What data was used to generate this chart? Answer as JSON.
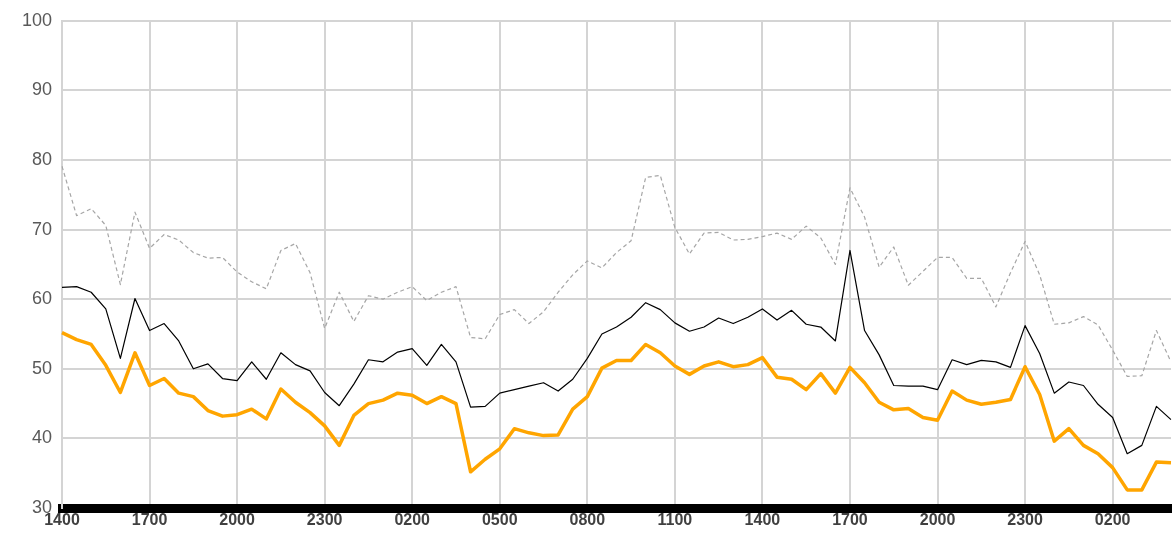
{
  "chart_data": {
    "type": "line",
    "categories": [
      "1400",
      null,
      null,
      null,
      null,
      null,
      "1700",
      null,
      null,
      null,
      null,
      null,
      "2000",
      null,
      null,
      null,
      null,
      null,
      "2300",
      null,
      null,
      null,
      null,
      null,
      "0200",
      null,
      null,
      null,
      null,
      null,
      "0500",
      null,
      null,
      null,
      null,
      null,
      "0800",
      null,
      null,
      null,
      null,
      null,
      "1100",
      null,
      null,
      null,
      null,
      null,
      "1400",
      null,
      null,
      null,
      null,
      null,
      "1700",
      null,
      null,
      null,
      null,
      null,
      "2000",
      null,
      null,
      null,
      null,
      null,
      "2300",
      null,
      null,
      null,
      null,
      null,
      "0200",
      null,
      null,
      null,
      null
    ],
    "series": [
      {
        "color": "#a6a6a6",
        "line_style": "dashed",
        "values": [
          79.1,
          72,
          73,
          70.6,
          62.1,
          72.5,
          67.3,
          69.3,
          68.5,
          66.7,
          65.9,
          66,
          63.9,
          62.5,
          61.5,
          67,
          68,
          63.8,
          55.8,
          61,
          56.8,
          60.5,
          60,
          61,
          61.8,
          59.8,
          61,
          61.8,
          54.5,
          54.3,
          57.8,
          58.5,
          56.5,
          58.2,
          61,
          63.5,
          65.5,
          64.5,
          66.7,
          68.4,
          77.5,
          77.8,
          70.3,
          66.5,
          69.5,
          69.6,
          68.5,
          68.6,
          69,
          69.5,
          68.6,
          70.5,
          68.8,
          65,
          76,
          71.8,
          64.6,
          67.5,
          62,
          64,
          66,
          66,
          63,
          63,
          58.9,
          63.8,
          68.3,
          63.5,
          56.4,
          56.6,
          57.5,
          56.3,
          52.7,
          48.9,
          49,
          55.5,
          51
        ]
      },
      {
        "color": "#000000",
        "values": [
          61.7,
          61.8,
          61,
          58.6,
          51.5,
          60.1,
          55.5,
          56.5,
          54,
          50,
          50.7,
          48.6,
          48.3,
          51,
          48.5,
          52.3,
          50.6,
          49.7,
          46.6,
          44.7,
          47.8,
          51.3,
          51,
          52.4,
          52.9,
          50.5,
          53.5,
          51,
          44.5,
          44.6,
          46.5,
          47,
          47.5,
          48,
          46.8,
          48.5,
          51.5,
          55,
          56,
          57.4,
          59.5,
          58.5,
          56.6,
          55.4,
          56,
          57.3,
          56.5,
          57.4,
          58.6,
          57,
          58.4,
          56.4,
          56,
          54,
          67,
          55.5,
          52,
          47.6,
          47.5,
          47.5,
          47,
          51.3,
          50.6,
          51.2,
          51,
          50.2,
          56.2,
          52.2,
          46.5,
          48.1,
          47.6,
          44.9,
          43,
          37.8,
          39,
          44.6,
          42.7
        ]
      },
      {
        "color": "#ffa500",
        "values": [
          55.2,
          54.2,
          53.5,
          50.5,
          46.6,
          52.3,
          47.6,
          48.6,
          46.5,
          46,
          44,
          43.2,
          43.4,
          44.2,
          42.8,
          47.1,
          45.2,
          43.7,
          41.8,
          39,
          43.3,
          45,
          45.5,
          46.5,
          46.2,
          45,
          46,
          45,
          35.2,
          37,
          38.5,
          41.4,
          40.8,
          40.4,
          40.5,
          44.2,
          46,
          50.1,
          51.2,
          51.2,
          53.5,
          52.3,
          50.4,
          49.2,
          50.4,
          51,
          50.3,
          50.6,
          51.6,
          48.8,
          48.5,
          47,
          49.3,
          46.5,
          50.2,
          48,
          45.2,
          44.1,
          44.3,
          43,
          42.6,
          46.8,
          45.5,
          44.9,
          45.2,
          45.6,
          50.3,
          46.3,
          39.6,
          41.4,
          39,
          37.8,
          35.8,
          32.6,
          32.6,
          36.6,
          36.5
        ]
      }
    ],
    "ylim": [
      30,
      100
    ],
    "yticks": [
      30,
      40,
      50,
      60,
      70,
      80,
      90,
      100
    ],
    "grid": true,
    "legend": false,
    "marker": "none"
  }
}
